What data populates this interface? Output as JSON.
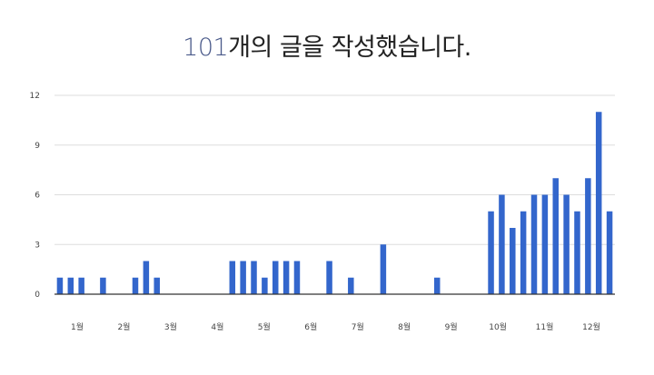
{
  "headline": {
    "count": "101",
    "rest": "개의 글을 작성했습니다."
  },
  "colors": {
    "bar": "#3366cc",
    "grid": "#dddddd",
    "axis": "#333333",
    "count": "#4a5a8a"
  },
  "chart_data": {
    "type": "bar",
    "title": "",
    "xlabel": "",
    "ylabel": "",
    "ylim": [
      0,
      12
    ],
    "yticks": [
      "0",
      "3",
      "6",
      "9",
      "12"
    ],
    "grid": true,
    "month_labels": [
      "1월",
      "2월",
      "3월",
      "4월",
      "5월",
      "6월",
      "7월",
      "8월",
      "9월",
      "10월",
      "11월",
      "12월"
    ],
    "values": [
      1,
      1,
      1,
      0,
      1,
      0,
      0,
      1,
      2,
      1,
      0,
      0,
      0,
      0,
      0,
      0,
      2,
      2,
      2,
      1,
      2,
      2,
      2,
      0,
      0,
      2,
      0,
      1,
      0,
      0,
      3,
      0,
      0,
      0,
      0,
      1,
      0,
      0,
      0,
      0,
      5,
      6,
      4,
      5,
      6,
      6,
      7,
      6,
      5,
      7,
      11,
      5
    ]
  }
}
